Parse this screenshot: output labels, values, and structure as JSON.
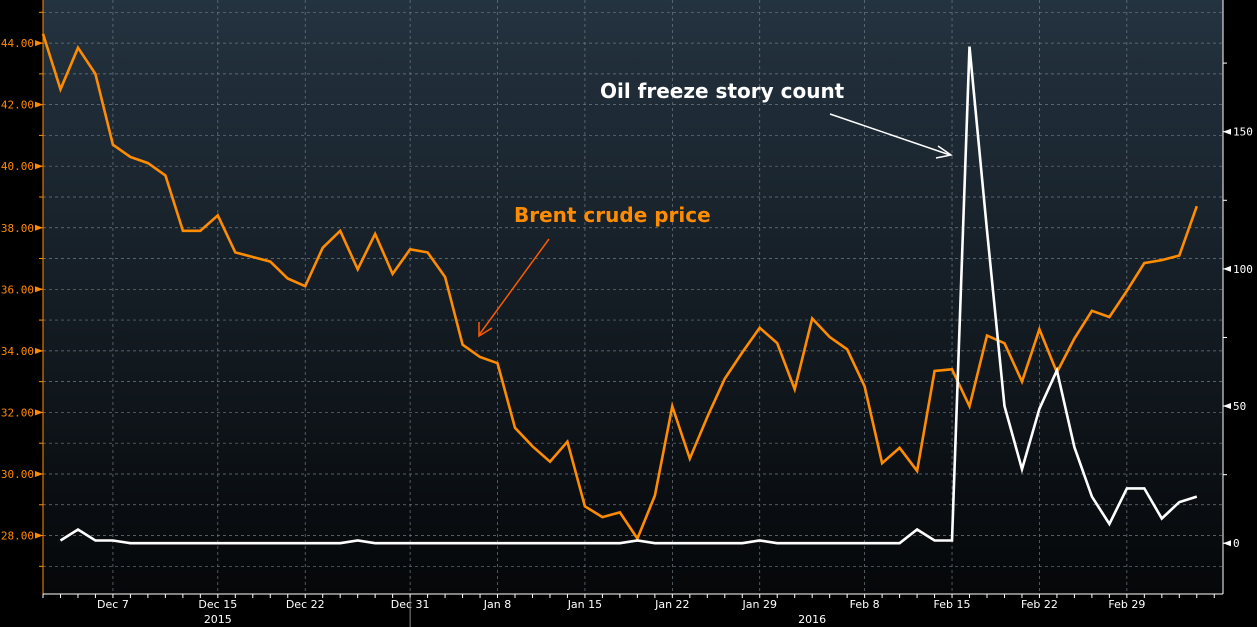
{
  "chart_data": {
    "type": "line",
    "title": "",
    "x_unit": "trading day index (Dec 1, 2015 = 0)",
    "x_ticks": [
      {
        "index": 4,
        "label": "Dec 7"
      },
      {
        "index": 10,
        "label": "Dec 15"
      },
      {
        "index": 15,
        "label": "Dec 22"
      },
      {
        "index": 21,
        "label": "Dec 31"
      },
      {
        "index": 26,
        "label": "Jan 8"
      },
      {
        "index": 31,
        "label": "Jan 15"
      },
      {
        "index": 36,
        "label": "Jan 22"
      },
      {
        "index": 41,
        "label": "Jan 29"
      },
      {
        "index": 47,
        "label": "Feb 8"
      },
      {
        "index": 52,
        "label": "Feb 15"
      },
      {
        "index": 57,
        "label": "Feb 22"
      },
      {
        "index": 62,
        "label": "Feb 29"
      }
    ],
    "years": [
      {
        "label": "2015",
        "index": 10
      },
      {
        "label": "2016",
        "index": 44
      }
    ],
    "year_divider_index": 21,
    "x_range": [
      0,
      67.5
    ],
    "left_axis": {
      "range": [
        26.1,
        45.4
      ],
      "ticks": [
        "28.00",
        "30.00",
        "32.00",
        "34.00",
        "36.00",
        "38.00",
        "40.00",
        "42.00",
        "44.00"
      ],
      "color": "#ff8c00"
    },
    "right_axis": {
      "range": [
        -18.5,
        198
      ],
      "ticks": [
        "0",
        "50",
        "100",
        "150"
      ],
      "color": "#ffffff"
    },
    "grid": true,
    "series": [
      {
        "name": "Brent crude price",
        "axis": "left",
        "color": "#ff8c00",
        "start_index": 0,
        "values": [
          44.3,
          42.5,
          43.85,
          43.0,
          40.7,
          40.3,
          40.1,
          39.7,
          37.9,
          37.9,
          38.4,
          37.2,
          37.05,
          36.9,
          36.35,
          36.1,
          37.35,
          37.9,
          36.65,
          37.8,
          36.5,
          37.3,
          37.2,
          36.4,
          34.2,
          33.8,
          33.6,
          31.5,
          30.9,
          30.4,
          31.05,
          28.95,
          28.6,
          28.75,
          27.9,
          29.3,
          32.2,
          30.5,
          31.85,
          33.1,
          33.95,
          34.75,
          34.25,
          32.75,
          35.05,
          34.45,
          34.05,
          32.85,
          30.35,
          30.85,
          30.1,
          33.35,
          33.4,
          32.2,
          34.5,
          34.25,
          33.0,
          34.7,
          33.3,
          34.4,
          35.3,
          35.1,
          35.95,
          36.85,
          36.95,
          37.1,
          38.7
        ]
      },
      {
        "name": "Oil freeze story count",
        "axis": "right",
        "color": "#ffffff",
        "start_index": 1,
        "values": [
          1,
          5,
          1,
          1,
          0,
          0,
          0,
          0,
          0,
          0,
          0,
          0,
          0,
          0,
          0,
          0,
          0,
          1,
          0,
          0,
          0,
          0,
          0,
          0,
          0,
          0,
          0,
          0,
          0,
          0,
          0,
          0,
          0,
          1,
          0,
          0,
          0,
          0,
          0,
          0,
          1,
          0,
          0,
          0,
          0,
          0,
          0,
          0,
          0,
          5,
          1,
          1,
          181,
          114,
          50,
          27,
          49,
          63,
          35,
          17,
          7,
          20,
          20,
          9,
          15,
          17
        ]
      }
    ],
    "annotations": [
      {
        "text": "Oil freeze story count",
        "color": "#ffffff"
      },
      {
        "text": "Brent crude price",
        "color": "#ff8c00"
      }
    ]
  }
}
